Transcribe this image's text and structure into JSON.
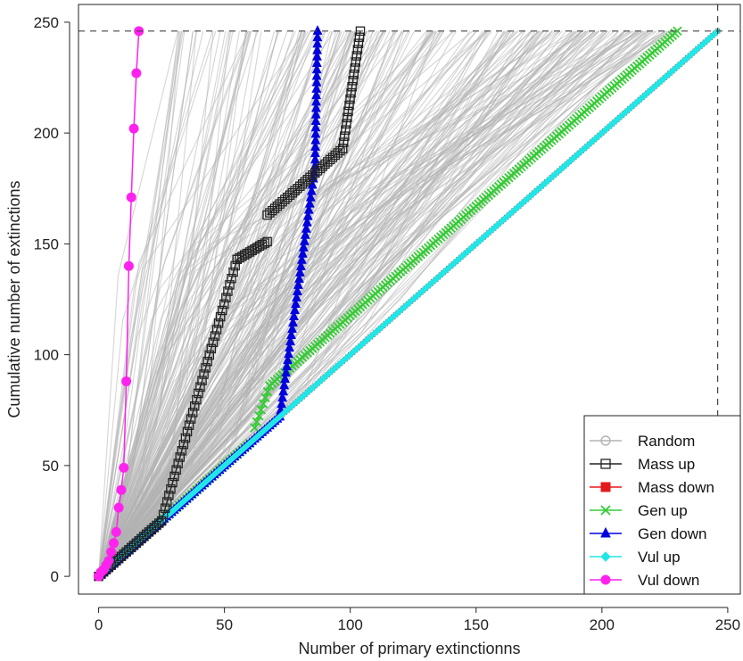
{
  "chart_data": {
    "type": "line",
    "title": "",
    "xlabel": "Number of primary extinctionns",
    "ylabel": "Cumulative number of extinctions",
    "xlim": [
      -8,
      255
    ],
    "ylim": [
      -8,
      258
    ],
    "x_ticks": [
      0,
      50,
      100,
      150,
      200,
      250
    ],
    "y_ticks": [
      0,
      50,
      100,
      150,
      200,
      250
    ],
    "reference_lines": {
      "horizontal": 246,
      "vertical": 246
    },
    "grid": false,
    "legend_position": "bottom-right",
    "series": [
      {
        "name": "Random",
        "color": "#b3b3b3",
        "marker": "circle-open",
        "note_points": [
          [
            0,
            0
          ],
          [
            246,
            246
          ]
        ]
      },
      {
        "name": "Mass up",
        "color": "#222222",
        "marker": "square-open",
        "segments": [
          [
            0,
            0,
            25,
            25
          ],
          [
            25,
            25,
            55,
            143
          ],
          [
            55,
            143,
            67,
            151
          ],
          [
            67,
            163,
            97,
            193
          ],
          [
            97,
            193,
            104,
            246
          ]
        ]
      },
      {
        "name": "Mass down",
        "color": "#e31a1c",
        "marker": "square-filled",
        "segments": [
          [
            0,
            0,
            246,
            246
          ]
        ]
      },
      {
        "name": "Gen up",
        "color": "#33cc33",
        "marker": "x",
        "segments": [
          [
            0,
            0,
            60,
            60
          ],
          [
            62,
            67,
            68,
            86
          ],
          [
            68,
            86,
            230,
            246
          ]
        ]
      },
      {
        "name": "Gen down",
        "color": "#0000dd",
        "marker": "triangle-filled",
        "segments": [
          [
            0,
            0,
            72,
            72
          ],
          [
            72,
            72,
            86,
            185
          ],
          [
            86,
            185,
            87,
            246
          ]
        ]
      },
      {
        "name": "Vul up",
        "color": "#22e6e6",
        "marker": "diamond-filled",
        "segments": [
          [
            0,
            0,
            246,
            246
          ]
        ]
      },
      {
        "name": "Vul down",
        "color": "#ff22ee",
        "marker": "circle-filled",
        "points": [
          [
            0,
            0
          ],
          [
            1,
            2
          ],
          [
            2,
            3
          ],
          [
            3,
            5
          ],
          [
            4,
            7
          ],
          [
            5,
            11
          ],
          [
            6,
            15
          ],
          [
            7,
            20
          ],
          [
            8,
            31
          ],
          [
            9,
            39
          ],
          [
            10,
            49
          ],
          [
            11,
            88
          ],
          [
            12,
            140
          ],
          [
            13,
            171
          ],
          [
            14,
            202
          ],
          [
            15,
            227
          ],
          [
            16,
            246
          ]
        ]
      }
    ]
  }
}
